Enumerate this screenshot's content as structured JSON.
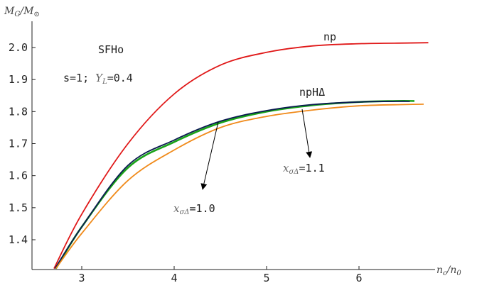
{
  "chart_data": {
    "type": "line",
    "xlabel": {
      "main": "n",
      "sub": "c",
      "sep": "/",
      "main2": "n",
      "sub2": "0"
    },
    "ylabel": {
      "main": "M",
      "sub": "G",
      "sep": "/",
      "main2": "M",
      "sub2": "⊙"
    },
    "xlim": [
      2.5,
      7.0
    ],
    "ylim": [
      1.31,
      2.1
    ],
    "xticks": [
      3,
      4,
      5,
      6
    ],
    "yticks": [
      1.4,
      1.5,
      1.6,
      1.7,
      1.8,
      1.9,
      2.0
    ],
    "ytick_labels": [
      "1.4",
      "1.5",
      "1.6",
      "1.7",
      "1.8",
      "1.9",
      "2.0"
    ],
    "grid": false,
    "series": [
      {
        "name": "np",
        "color": "#e01818",
        "x": [
          2.7,
          3.0,
          3.5,
          4.0,
          4.5,
          5.0,
          5.5,
          6.0,
          6.5,
          6.75
        ],
        "y": [
          1.31,
          1.48,
          1.7,
          1.855,
          1.945,
          1.985,
          2.005,
          2.012,
          2.014,
          2.015
        ]
      },
      {
        "name": "npHΔ",
        "color": "#1aa31a",
        "x": [
          2.72,
          3.0,
          3.5,
          4.0,
          4.5,
          5.0,
          5.5,
          6.0,
          6.4,
          6.6
        ],
        "y": [
          1.31,
          1.44,
          1.625,
          1.705,
          1.765,
          1.8,
          1.82,
          1.83,
          1.833,
          1.833
        ]
      },
      {
        "name": "",
        "color": "#0a1a50",
        "x": [
          2.71,
          3.0,
          3.5,
          4.0,
          4.5,
          5.0,
          5.5,
          6.0,
          6.4,
          6.55
        ],
        "y": [
          1.31,
          1.44,
          1.632,
          1.711,
          1.77,
          1.803,
          1.822,
          1.83,
          1.832,
          1.832
        ]
      },
      {
        "name": "",
        "color": "#f08a1a",
        "x": [
          2.72,
          3.0,
          3.5,
          4.0,
          4.5,
          5.0,
          5.5,
          6.0,
          6.5,
          6.7
        ],
        "y": [
          1.31,
          1.42,
          1.585,
          1.68,
          1.75,
          1.785,
          1.805,
          1.818,
          1.822,
          1.823
        ]
      }
    ],
    "labels": {
      "eos": "SFHo",
      "params_prefix": "s=1; ",
      "yl_main": "Y",
      "yl_sub": "L",
      "yl_value": "=0.4",
      "np": "np",
      "nphd": "npHΔ",
      "x1_main": "x",
      "x1_sub": "σΔ",
      "x1_value": "=1.0",
      "x2_main": "x",
      "x2_sub": "σΔ",
      "x2_value": "=1.1"
    }
  }
}
